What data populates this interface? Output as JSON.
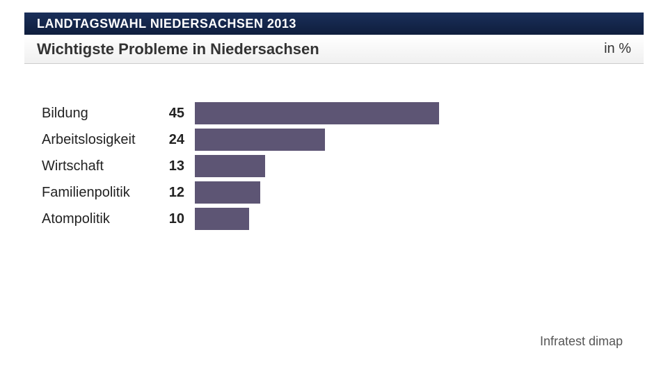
{
  "header": {
    "banner_text": "LANDTAGSWAHL NIEDERSACHSEN 2013",
    "subtitle": "Wichtigste Probleme in Niedersachsen",
    "unit": "in %"
  },
  "chart": {
    "type": "bar",
    "orientation": "horizontal",
    "bar_color": "#5d5574",
    "background_color": "#ffffff",
    "max_value": 100,
    "bar_scale_factor": 7.8,
    "label_fontsize": 20,
    "value_fontsize": 20,
    "value_fontweight": "bold",
    "categories": [
      "Bildung",
      "Arbeitslosigkeit",
      "Wirtschaft",
      "Familienpolitik",
      "Atompolitik"
    ],
    "values": [
      45,
      24,
      13,
      12,
      10
    ]
  },
  "source": "Infratest dimap",
  "colors": {
    "banner_bg_top": "#1a2f5a",
    "banner_bg_bottom": "#0f1e3d",
    "banner_text": "#ffffff",
    "subtitle_text": "#333333",
    "bar": "#5d5574",
    "label_text": "#222222",
    "source_text": "#555555"
  }
}
